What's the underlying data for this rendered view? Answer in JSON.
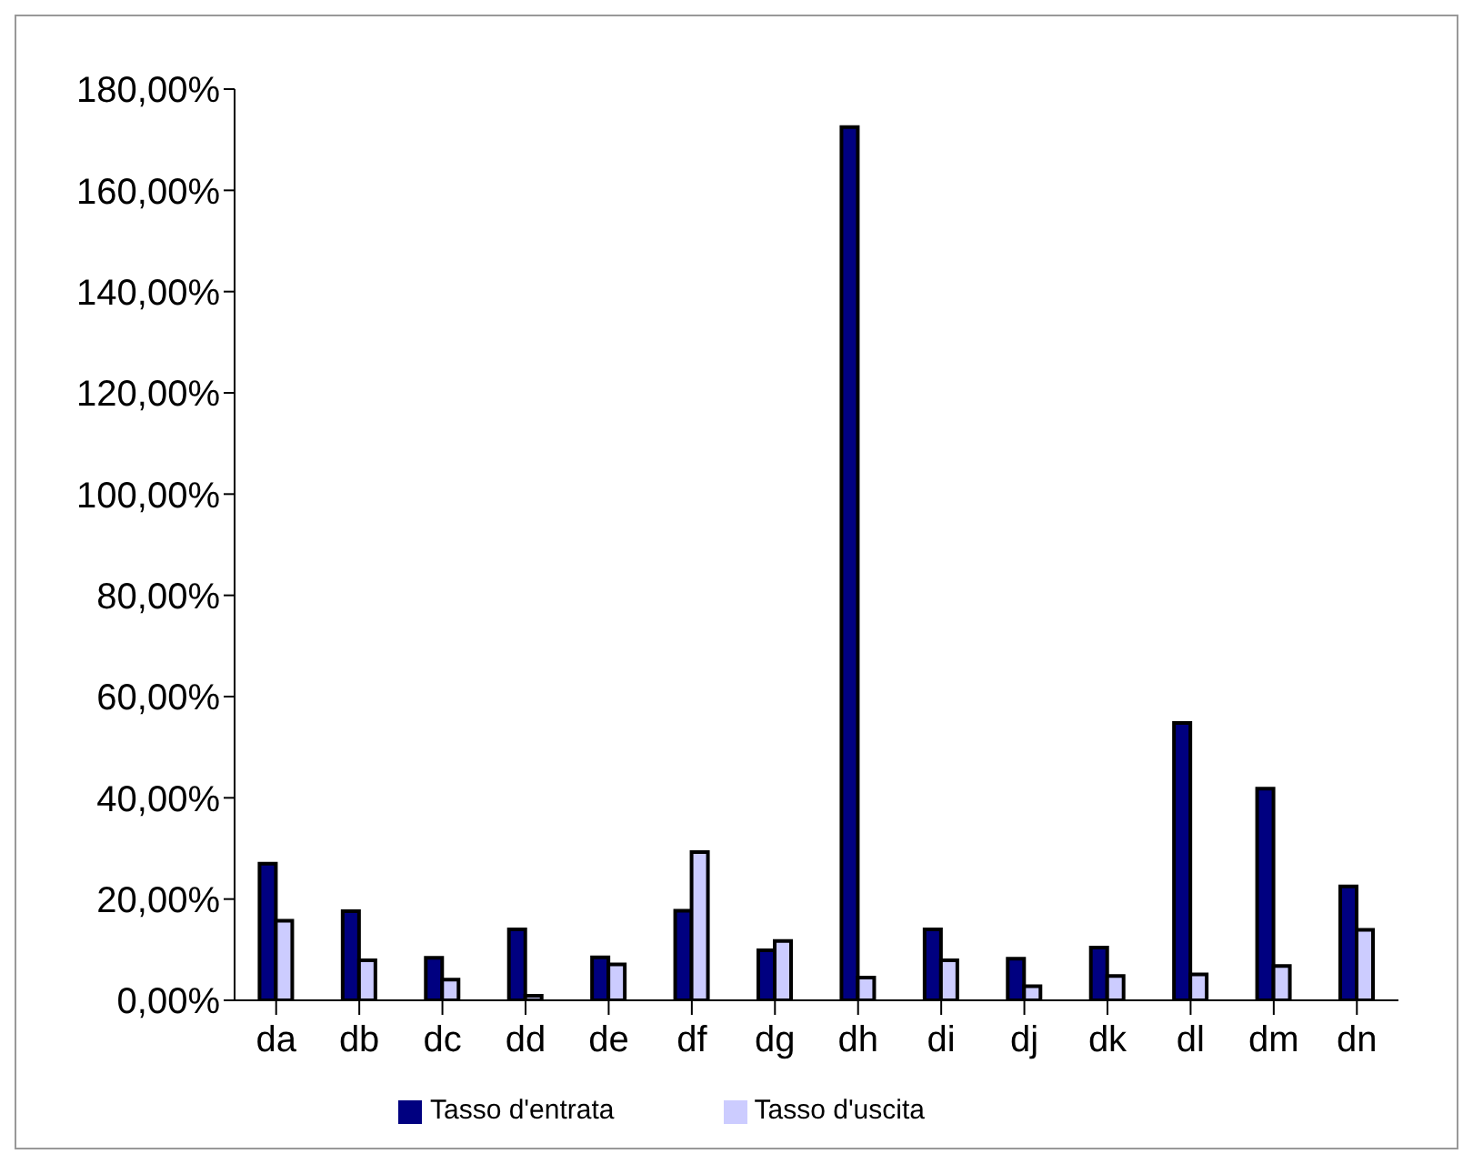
{
  "chart_data": {
    "type": "bar",
    "categories": [
      "da",
      "db",
      "dc",
      "dd",
      "de",
      "df",
      "dg",
      "dh",
      "di",
      "dj",
      "dk",
      "dl",
      "dm",
      "dn"
    ],
    "series": [
      {
        "name": "Tasso d'entrata",
        "color": "#000080",
        "values": [
          27.0,
          17.6,
          8.4,
          14.0,
          8.5,
          17.7,
          9.9,
          172.5,
          14.0,
          8.2,
          10.4,
          54.8,
          41.8,
          22.5
        ]
      },
      {
        "name": "Tasso d'uscita",
        "color": "#ccccff",
        "values": [
          15.7,
          7.9,
          4.1,
          0.9,
          7.1,
          29.3,
          11.7,
          4.5,
          7.9,
          2.8,
          4.8,
          5.1,
          6.8,
          13.9
        ]
      }
    ],
    "ylim": [
      0,
      180
    ],
    "yticks": [
      {
        "value": 0,
        "label": "0,00%"
      },
      {
        "value": 20,
        "label": "20,00%"
      },
      {
        "value": 40,
        "label": "40,00%"
      },
      {
        "value": 60,
        "label": "60,00%"
      },
      {
        "value": 80,
        "label": "80,00%"
      },
      {
        "value": 100,
        "label": "100,00%"
      },
      {
        "value": 120,
        "label": "120,00%"
      },
      {
        "value": 140,
        "label": "140,00%"
      },
      {
        "value": 160,
        "label": "160,00%"
      },
      {
        "value": 180,
        "label": "180,00%"
      }
    ],
    "legend": "bottom"
  }
}
